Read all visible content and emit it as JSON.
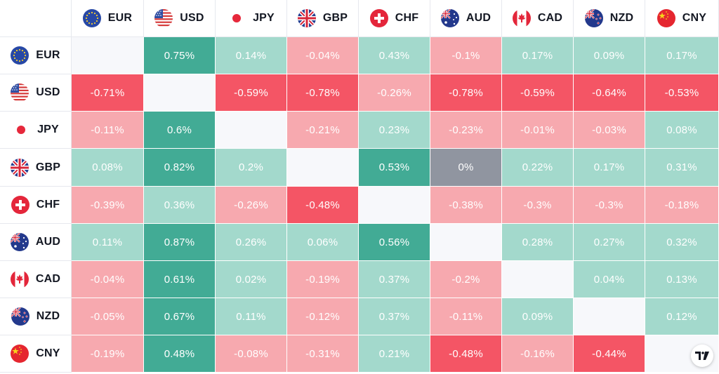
{
  "currencies": [
    "EUR",
    "USD",
    "JPY",
    "GBP",
    "CHF",
    "AUD",
    "CAD",
    "NZD",
    "CNY"
  ],
  "flags": [
    "eu-flag-icon",
    "us-flag-icon",
    "jp-flag-icon",
    "gb-flag-icon",
    "ch-flag-icon",
    "au-flag-icon",
    "ca-flag-icon",
    "nz-flag-icon",
    "cn-flag-icon"
  ],
  "colors": {
    "strong_positive": "#42ab95",
    "light_positive": "#a3d9cc",
    "light_negative": "#f7a9af",
    "strong_negative": "#f45565",
    "neutral": "#9095a0",
    "diagonal": "#f7f8fb"
  },
  "logo_icon": "tradingview-logo-icon",
  "chart_data": {
    "type": "heatmap",
    "rows": [
      "EUR",
      "USD",
      "JPY",
      "GBP",
      "CHF",
      "AUD",
      "CAD",
      "NZD",
      "CNY"
    ],
    "columns": [
      "EUR",
      "USD",
      "JPY",
      "GBP",
      "CHF",
      "AUD",
      "CAD",
      "NZD",
      "CNY"
    ],
    "values": [
      [
        null,
        "0.75%",
        "0.14%",
        "-0.04%",
        "0.43%",
        "-0.1%",
        "0.17%",
        "0.09%",
        "0.17%"
      ],
      [
        "-0.71%",
        null,
        "-0.59%",
        "-0.78%",
        "-0.26%",
        "-0.78%",
        "-0.59%",
        "-0.64%",
        "-0.53%"
      ],
      [
        "-0.11%",
        "0.6%",
        null,
        "-0.21%",
        "0.23%",
        "-0.23%",
        "-0.01%",
        "-0.03%",
        "0.08%"
      ],
      [
        "0.08%",
        "0.82%",
        "0.2%",
        null,
        "0.53%",
        "0%",
        "0.22%",
        "0.17%",
        "0.31%"
      ],
      [
        "-0.39%",
        "0.36%",
        "-0.26%",
        "-0.48%",
        null,
        "-0.38%",
        "-0.3%",
        "-0.3%",
        "-0.18%"
      ],
      [
        "0.11%",
        "0.87%",
        "0.26%",
        "0.06%",
        "0.56%",
        null,
        "0.28%",
        "0.27%",
        "0.32%"
      ],
      [
        "-0.04%",
        "0.61%",
        "0.02%",
        "-0.19%",
        "0.37%",
        "-0.2%",
        null,
        "0.04%",
        "0.13%"
      ],
      [
        "-0.05%",
        "0.67%",
        "0.11%",
        "-0.12%",
        "0.37%",
        "-0.11%",
        "0.09%",
        null,
        "0.12%"
      ],
      [
        "-0.19%",
        "0.48%",
        "-0.08%",
        "-0.31%",
        "0.21%",
        "-0.48%",
        "-0.16%",
        "-0.44%",
        null
      ]
    ],
    "shades": [
      [
        null,
        "strong_positive",
        "light_positive",
        "light_negative",
        "light_positive",
        "light_negative",
        "light_positive",
        "light_positive",
        "light_positive"
      ],
      [
        "strong_negative",
        null,
        "strong_negative",
        "strong_negative",
        "light_negative",
        "strong_negative",
        "strong_negative",
        "strong_negative",
        "strong_negative"
      ],
      [
        "light_negative",
        "strong_positive",
        null,
        "light_negative",
        "light_positive",
        "light_negative",
        "light_negative",
        "light_negative",
        "light_positive"
      ],
      [
        "light_positive",
        "strong_positive",
        "light_positive",
        null,
        "strong_positive",
        "neutral",
        "light_positive",
        "light_positive",
        "light_positive"
      ],
      [
        "light_negative",
        "light_positive",
        "light_negative",
        "strong_negative",
        null,
        "light_negative",
        "light_negative",
        "light_negative",
        "light_negative"
      ],
      [
        "light_positive",
        "strong_positive",
        "light_positive",
        "light_positive",
        "strong_positive",
        null,
        "light_positive",
        "light_positive",
        "light_positive"
      ],
      [
        "light_negative",
        "strong_positive",
        "light_positive",
        "light_negative",
        "light_positive",
        "light_negative",
        null,
        "light_positive",
        "light_positive"
      ],
      [
        "light_negative",
        "strong_positive",
        "light_positive",
        "light_negative",
        "light_positive",
        "light_negative",
        "light_positive",
        null,
        "light_positive"
      ],
      [
        "light_negative",
        "strong_positive",
        "light_negative",
        "light_negative",
        "light_positive",
        "strong_negative",
        "light_negative",
        "strong_negative",
        null
      ]
    ]
  }
}
